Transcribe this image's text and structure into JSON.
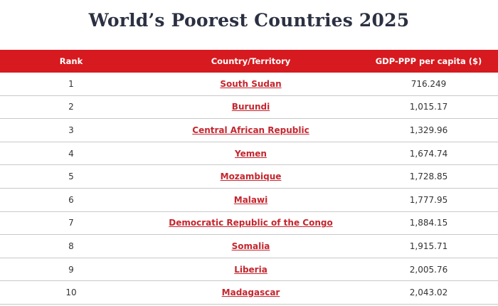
{
  "title": "World’s Poorest Countries 2025",
  "table": {
    "header": [
      "Rank",
      "Country/Territory",
      "GDP-PPP per capita ($)"
    ],
    "rows": [
      [
        "1",
        "South Sudan",
        "716.249"
      ],
      [
        "2",
        "Burundi",
        "1,015.17"
      ],
      [
        "3",
        "Central African Republic",
        "1,329.96"
      ],
      [
        "4",
        "Yemen",
        "1,674.74"
      ],
      [
        "5",
        "Mozambique",
        "1,728.85"
      ],
      [
        "6",
        "Malawi",
        "1,777.95"
      ],
      [
        "7",
        "Democratic Republic of the Congo",
        "1,884.15"
      ],
      [
        "8",
        "Somalia",
        "1,915.71"
      ],
      [
        "9",
        "Liberia",
        "2,005.76"
      ],
      [
        "10",
        "Madagascar",
        "2,043.02"
      ]
    ]
  }
}
